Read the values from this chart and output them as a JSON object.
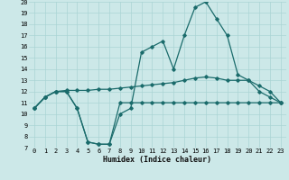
{
  "xlabel": "Humidex (Indice chaleur)",
  "background_color": "#cce8e8",
  "grid_color": "#aad4d4",
  "line_color": "#1a6b6b",
  "x_all": [
    0,
    1,
    2,
    3,
    4,
    5,
    6,
    7,
    8,
    9,
    10,
    11,
    12,
    13,
    14,
    15,
    16,
    17,
    18,
    19,
    20,
    21,
    22,
    23
  ],
  "line1_y": [
    10.5,
    11.5,
    12.0,
    12.0,
    10.5,
    7.5,
    7.3,
    7.3,
    11.0,
    11.0,
    11.0,
    11.0,
    11.0,
    11.0,
    11.0,
    11.0,
    11.0,
    11.0,
    11.0,
    11.0,
    11.0,
    11.0,
    11.0,
    11.0
  ],
  "line2_y": [
    10.5,
    11.5,
    12.0,
    12.1,
    12.1,
    12.1,
    12.2,
    12.2,
    12.3,
    12.4,
    12.5,
    12.6,
    12.7,
    12.8,
    13.0,
    13.2,
    13.3,
    13.2,
    13.0,
    13.0,
    13.0,
    12.5,
    12.0,
    11.0
  ],
  "line3_y": [
    10.5,
    11.5,
    12.0,
    12.0,
    10.5,
    7.5,
    7.3,
    7.3,
    10.0,
    10.5,
    15.5,
    16.0,
    16.5,
    14.0,
    17.0,
    19.5,
    20.0,
    18.5,
    17.0,
    13.5,
    13.0,
    12.0,
    11.5,
    11.0
  ],
  "ylim": [
    7,
    20
  ],
  "xlim": [
    -0.5,
    23.5
  ],
  "yticks": [
    7,
    8,
    9,
    10,
    11,
    12,
    13,
    14,
    15,
    16,
    17,
    18,
    19,
    20
  ],
  "xticks": [
    0,
    1,
    2,
    3,
    4,
    5,
    6,
    7,
    8,
    9,
    10,
    11,
    12,
    13,
    14,
    15,
    16,
    17,
    18,
    19,
    20,
    21,
    22,
    23
  ],
  "tick_fontsize": 5,
  "xlabel_fontsize": 6
}
